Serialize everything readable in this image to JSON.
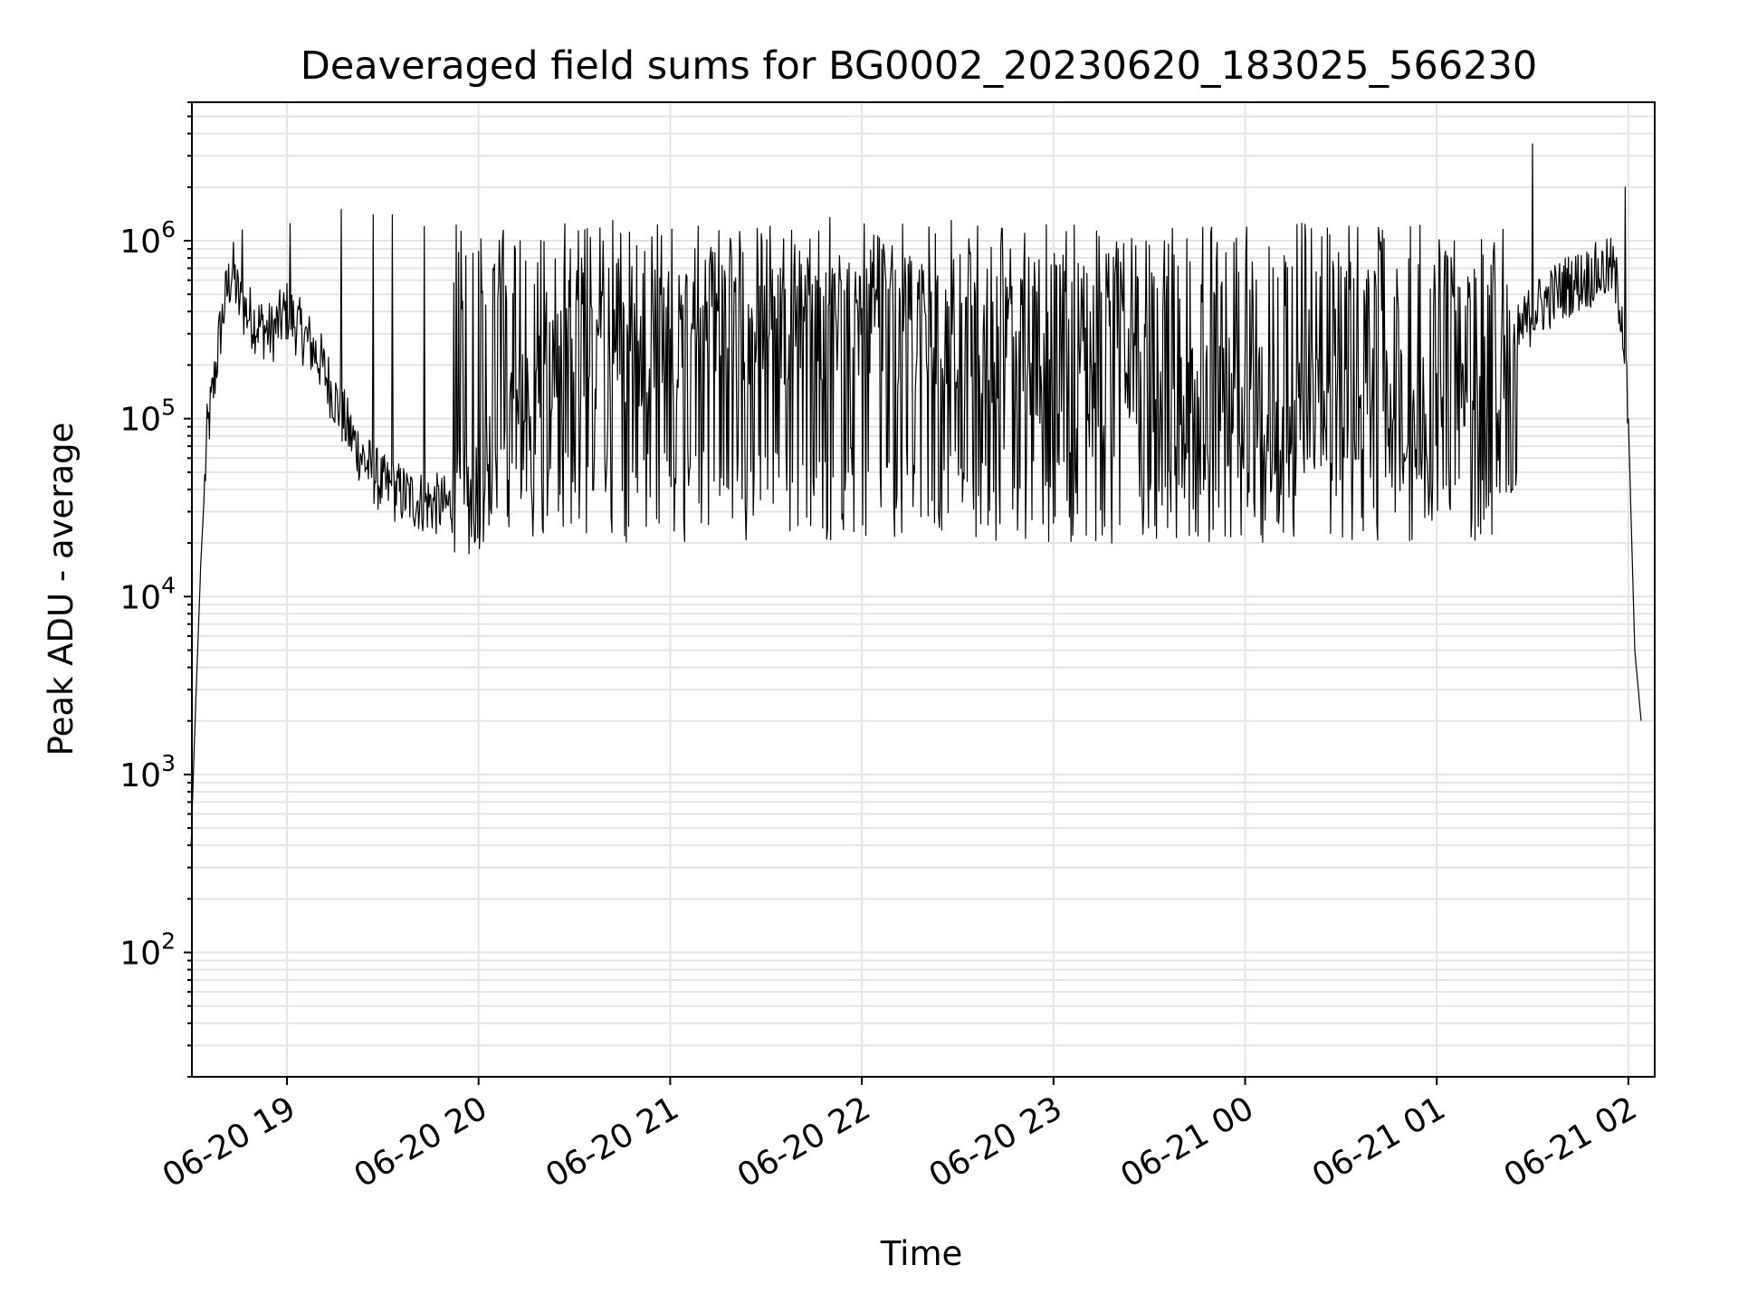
{
  "chart_data": {
    "type": "line",
    "title": "Deaveraged field sums for BG0002_20230620_183025_566230",
    "xlabel": "Time",
    "ylabel": "Peak ADU - average",
    "y_scale": "log",
    "ylim": [
      20,
      6000000
    ],
    "y_tick_values": [
      100,
      1000,
      10000,
      100000,
      1000000
    ],
    "y_tick_labels": [
      {
        "base": "10",
        "exp": "2"
      },
      {
        "base": "10",
        "exp": "3"
      },
      {
        "base": "10",
        "exp": "4"
      },
      {
        "base": "10",
        "exp": "5"
      },
      {
        "base": "10",
        "exp": "6"
      }
    ],
    "x_range": [
      "2023-06-20 18:30",
      "2023-06-21 02:00"
    ],
    "x_tick_values": [
      "2023-06-20 19:00",
      "2023-06-20 20:00",
      "2023-06-20 21:00",
      "2023-06-20 22:00",
      "2023-06-20 23:00",
      "2023-06-21 00:00",
      "2023-06-21 01:00",
      "2023-06-21 02:00"
    ],
    "x_tick_labels": [
      "06-20 19",
      "06-20 20",
      "06-20 21",
      "06-20 22",
      "06-20 23",
      "06-21 00",
      "06-21 01",
      "06-21 02"
    ],
    "grid": true,
    "line_color": "#000000",
    "grid_color": "#e3e3e3",
    "series": [
      {
        "points": [
          [
            "2023-06-20 18:30",
            400
          ],
          [
            "2023-06-20 18:31",
            1500
          ],
          [
            "2023-06-20 18:33",
            15000
          ],
          [
            "2023-06-20 18:35",
            80000
          ],
          [
            "2023-06-20 18:37",
            150000
          ],
          [
            "2023-06-20 18:39",
            300000
          ],
          [
            "2023-06-20 18:41",
            500000
          ],
          [
            "2023-06-20 18:43",
            700000
          ],
          [
            "2023-06-20 18:45",
            450000
          ],
          [
            "2023-06-20 18:50",
            350000
          ],
          [
            "2023-06-20 18:55",
            300000
          ],
          [
            "2023-06-20 19:00",
            400000
          ],
          [
            "2023-06-20 19:05",
            300000
          ],
          [
            "2023-06-20 19:10",
            220000
          ],
          [
            "2023-06-20 19:15",
            130000
          ],
          [
            "2023-06-20 19:20",
            80000
          ],
          [
            "2023-06-20 19:25",
            55000
          ],
          [
            "2023-06-20 19:30",
            42000
          ],
          [
            "2023-06-20 19:40",
            35000
          ],
          [
            "2023-06-20 19:50",
            32000
          ],
          [
            "2023-06-20 20:00",
            40000
          ],
          [
            "2023-06-20 20:20",
            180000
          ],
          [
            "2023-06-20 20:45",
            250000
          ],
          [
            "2023-06-20 21:15",
            300000
          ],
          [
            "2023-06-20 21:45",
            350000
          ],
          [
            "2023-06-20 22:15",
            330000
          ],
          [
            "2023-06-20 22:45",
            220000
          ],
          [
            "2023-06-20 23:15",
            180000
          ],
          [
            "2023-06-20 23:45",
            140000
          ],
          [
            "2023-06-21 00:15",
            110000
          ],
          [
            "2023-06-21 00:45",
            120000
          ],
          [
            "2023-06-21 01:00",
            100000
          ],
          [
            "2023-06-21 01:10",
            100000
          ],
          [
            "2023-06-21 01:20",
            200000
          ],
          [
            "2023-06-21 01:30",
            400000
          ],
          [
            "2023-06-21 01:40",
            550000
          ],
          [
            "2023-06-21 01:50",
            650000
          ],
          [
            "2023-06-21 01:55",
            700000
          ],
          [
            "2023-06-21 01:58",
            400000
          ],
          [
            "2023-06-21 02:00",
            100000
          ],
          [
            "2023-06-21 02:02",
            5000
          ],
          [
            "2023-06-21 02:04",
            2000
          ]
        ],
        "noisy_section": [
          "2023-06-20 19:52",
          "2023-06-21 01:25"
        ],
        "peaks": [
          [
            "2023-06-20 18:46",
            1150000
          ],
          [
            "2023-06-20 19:01",
            1250000
          ],
          [
            "2023-06-20 19:17",
            1500000
          ],
          [
            "2023-06-20 19:27",
            1400000
          ],
          [
            "2023-06-20 19:33",
            1400000
          ],
          [
            "2023-06-20 19:43",
            1200000
          ],
          [
            "2023-06-20 20:42",
            1300000
          ],
          [
            "2023-06-20 21:50",
            1350000
          ],
          [
            "2023-06-20 22:28",
            1300000
          ],
          [
            "2023-06-21 01:30",
            3500000
          ],
          [
            "2023-06-21 01:59",
            2000000
          ]
        ]
      }
    ]
  }
}
